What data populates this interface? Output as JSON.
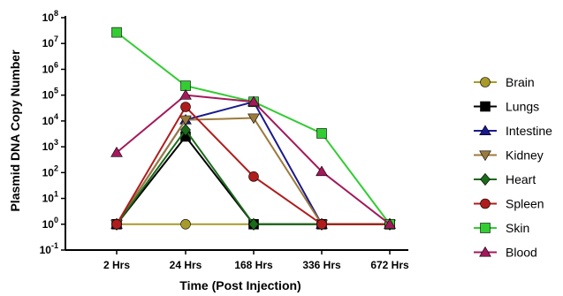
{
  "chart_data": {
    "type": "line",
    "title": "",
    "xlabel": "Time (Post Injection)",
    "ylabel": "Plasmid DNA Copy Number",
    "categories": [
      "2 Hrs",
      "24 Hrs",
      "168 Hrs",
      "336 Hrs",
      "672 Hrs"
    ],
    "y_scale": "log",
    "ylim": [
      0.1,
      100000000
    ],
    "y_ticks": [
      {
        "value": 0.1,
        "base": "10",
        "exp": "-1"
      },
      {
        "value": 1,
        "base": "10",
        "exp": "0"
      },
      {
        "value": 10,
        "base": "10",
        "exp": "1"
      },
      {
        "value": 100,
        "base": "10",
        "exp": "2"
      },
      {
        "value": 1000,
        "base": "10",
        "exp": "3"
      },
      {
        "value": 10000,
        "base": "10",
        "exp": "4"
      },
      {
        "value": 100000,
        "base": "10",
        "exp": "5"
      },
      {
        "value": 1000000,
        "base": "10",
        "exp": "6"
      },
      {
        "value": 10000000,
        "base": "10",
        "exp": "7"
      },
      {
        "value": 100000000,
        "base": "10",
        "exp": "8"
      }
    ],
    "grid": false,
    "legend_position": "right",
    "series": [
      {
        "name": "Brain",
        "color": "#a89a2a",
        "marker": "circle",
        "values": [
          1,
          1,
          1,
          1,
          1
        ]
      },
      {
        "name": "Lungs",
        "color": "#000000",
        "marker": "square",
        "values": [
          1,
          2500,
          1,
          1,
          1
        ]
      },
      {
        "name": "Intestine",
        "color": "#1a1a8c",
        "marker": "triangle-up",
        "values": [
          1,
          11000,
          55000,
          1,
          1
        ]
      },
      {
        "name": "Kidney",
        "color": "#9c7a3c",
        "marker": "triangle-down",
        "values": [
          1,
          11000,
          13000,
          1,
          1
        ]
      },
      {
        "name": "Heart",
        "color": "#1a6b1a",
        "marker": "diamond",
        "values": [
          1,
          4500,
          1,
          1,
          1
        ]
      },
      {
        "name": "Spleen",
        "color": "#b01c1c",
        "marker": "circle",
        "values": [
          1,
          35000,
          70,
          1,
          1
        ]
      },
      {
        "name": "Skin",
        "color": "#33cc33",
        "marker": "square",
        "values": [
          27000000,
          230000,
          55000,
          3300,
          1
        ]
      },
      {
        "name": "Blood",
        "color": "#a3195b",
        "marker": "triangle-up",
        "values": [
          600,
          100000,
          55000,
          110,
          1
        ]
      }
    ]
  }
}
